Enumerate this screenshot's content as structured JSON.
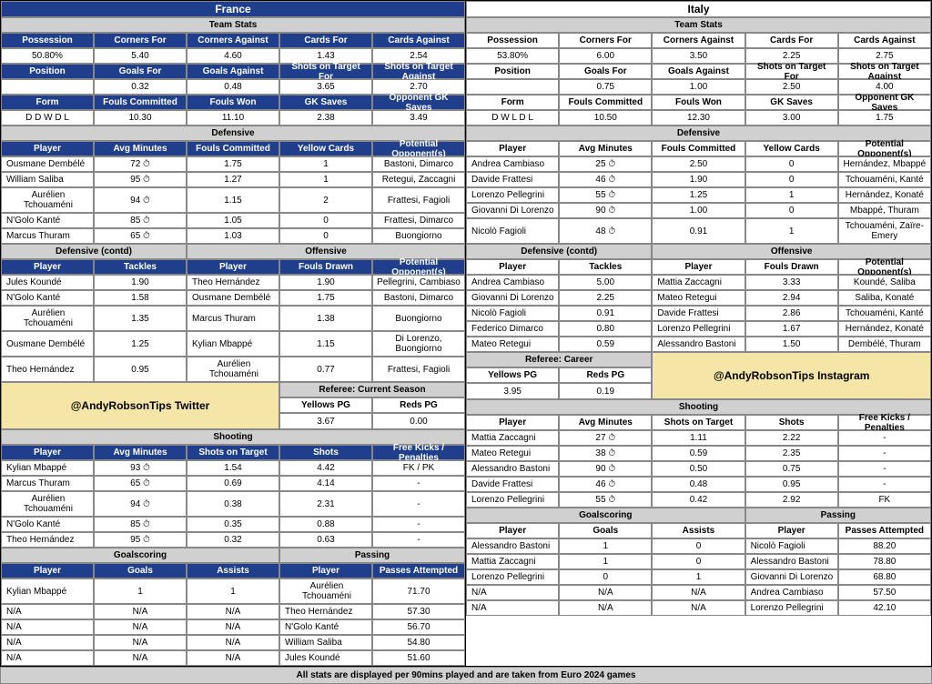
{
  "footer": "All stats are displayed per 90mins played and are taken from Euro 2024 games",
  "promo": {
    "twitter": "@AndyRobsonTips Twitter",
    "instagram": "@AndyRobsonTips Instagram"
  },
  "france": {
    "name": "France",
    "teamstats_lbl": "Team Stats",
    "stats1_h": [
      "Possession",
      "Corners For",
      "Corners Against",
      "Cards For",
      "Cards Against"
    ],
    "stats1_v": [
      "50.80%",
      "5.40",
      "4.60",
      "1.43",
      "2.54"
    ],
    "stats2_h": [
      "Position",
      "Goals For",
      "Goals Against",
      "Shots on Target For",
      "Shots on Target Against"
    ],
    "stats2_v": [
      "",
      "0.32",
      "0.48",
      "3.65",
      "2.70"
    ],
    "stats3_h": [
      "Form",
      "Fouls Committed",
      "Fouls Won",
      "GK Saves",
      "Opponent GK Saves"
    ],
    "stats3_v": [
      "D D W D L",
      "10.30",
      "11.10",
      "2.38",
      "3.49"
    ],
    "defensive_lbl": "Defensive",
    "def_h": [
      "Player",
      "Avg Minutes",
      "Fouls Committed",
      "Yellow Cards",
      "Potential Opponent(s)"
    ],
    "def_rows": [
      [
        "Ousmane Dembélé",
        "72 ⏱",
        "1.75",
        "1",
        "Bastoni, Dimarco"
      ],
      [
        "William Saliba",
        "95 ⏱",
        "1.27",
        "1",
        "Retegui, Zaccagni"
      ],
      [
        "Aurélien Tchouaméni",
        "94 ⏱",
        "1.15",
        "2",
        "Frattesi, Fagioli"
      ],
      [
        "N'Golo Kanté",
        "85 ⏱",
        "1.05",
        "0",
        "Frattesi, Dimarco"
      ],
      [
        "Marcus Thuram",
        "65 ⏱",
        "1.03",
        "0",
        "Buongiorno"
      ]
    ],
    "defc_lbl": "Defensive (contd)",
    "off_lbl": "Offensive",
    "defc_h": [
      "Player",
      "Tackles"
    ],
    "off_h": [
      "Player",
      "Fouls Drawn",
      "Potential Opponent(s)"
    ],
    "defc_rows": [
      [
        "Jules Koundé",
        "1.90"
      ],
      [
        "N'Golo Kanté",
        "1.58"
      ],
      [
        "Aurélien Tchouaméni",
        "1.35"
      ],
      [
        "Ousmane Dembélé",
        "1.25"
      ],
      [
        "Theo Hernández",
        "0.95"
      ]
    ],
    "off_rows": [
      [
        "Theo Hernández",
        "1.90",
        "Pellegrini, Cambiaso"
      ],
      [
        "Ousmane Dembélé",
        "1.75",
        "Bastoni, Dimarco"
      ],
      [
        "Marcus Thuram",
        "1.38",
        "Buongiorno"
      ],
      [
        "Kylian Mbappé",
        "1.15",
        "Di Lorenzo, Buongiorno"
      ],
      [
        "Aurélien Tchouaméni",
        "0.77",
        "Frattesi, Fagioli"
      ]
    ],
    "shoot_lbl": "Shooting",
    "shoot_h": [
      "Player",
      "Avg Minutes",
      "Shots on Target",
      "Shots",
      "Free Kicks / Penalties"
    ],
    "shoot_rows": [
      [
        "Kylian Mbappé",
        "93 ⏱",
        "1.54",
        "4.42",
        "FK / PK"
      ],
      [
        "Marcus Thuram",
        "65 ⏱",
        "0.69",
        "4.14",
        "-"
      ],
      [
        "Aurélien Tchouaméni",
        "94 ⏱",
        "0.38",
        "2.31",
        "-"
      ],
      [
        "N'Golo Kanté",
        "85 ⏱",
        "0.35",
        "0.88",
        "-"
      ],
      [
        "Theo Hernández",
        "95 ⏱",
        "0.32",
        "0.63",
        "-"
      ]
    ],
    "goal_lbl": "Goalscoring",
    "pass_lbl": "Passing",
    "goal_h": [
      "Player",
      "Goals",
      "Assists"
    ],
    "pass_h": [
      "Player",
      "Passes Attempted"
    ],
    "goal_rows": [
      [
        "Kylian Mbappé",
        "1",
        "1"
      ],
      [
        "N/A",
        "N/A",
        "N/A"
      ],
      [
        "N/A",
        "N/A",
        "N/A"
      ],
      [
        "N/A",
        "N/A",
        "N/A"
      ],
      [
        "N/A",
        "N/A",
        "N/A"
      ]
    ],
    "pass_rows": [
      [
        "Aurélien Tchouaméni",
        "71.70"
      ],
      [
        "Theo Hernández",
        "57.30"
      ],
      [
        "N'Golo Kanté",
        "56.70"
      ],
      [
        "William Saliba",
        "54.80"
      ],
      [
        "Jules Koundé",
        "51.60"
      ]
    ]
  },
  "italy": {
    "name": "Italy",
    "teamstats_lbl": "Team Stats",
    "stats1_h": [
      "Possession",
      "Corners For",
      "Corners Against",
      "Cards For",
      "Cards Against"
    ],
    "stats1_v": [
      "53.80%",
      "6.00",
      "3.50",
      "2.25",
      "2.75"
    ],
    "stats2_h": [
      "Position",
      "Goals For",
      "Goals Against",
      "Shots on Target For",
      "Shots on Target Against"
    ],
    "stats2_v": [
      "",
      "0.75",
      "1.00",
      "2.50",
      "4.00"
    ],
    "stats3_h": [
      "Form",
      "Fouls Committed",
      "Fouls Won",
      "GK Saves",
      "Opponent GK Saves"
    ],
    "stats3_v": [
      "D W L D L",
      "10.50",
      "12.30",
      "3.00",
      "1.75"
    ],
    "defensive_lbl": "Defensive",
    "def_h": [
      "Player",
      "Avg Minutes",
      "Fouls Committed",
      "Yellow Cards",
      "Potential Opponent(s)"
    ],
    "def_rows": [
      [
        "Andrea Cambiaso",
        "25 ⏱",
        "2.50",
        "0",
        "Hernández, Mbappé"
      ],
      [
        "Davide Frattesi",
        "46 ⏱",
        "1.90",
        "0",
        "Tchouaméni, Kanté"
      ],
      [
        "Lorenzo Pellegrini",
        "55 ⏱",
        "1.25",
        "1",
        "Hernández, Konaté"
      ],
      [
        "Giovanni Di Lorenzo",
        "90 ⏱",
        "1.00",
        "0",
        "Mbappé, Thuram"
      ],
      [
        "Nicolò Fagioli",
        "48 ⏱",
        "0.91",
        "1",
        "Tchouaméni, Zaïre-Emery"
      ]
    ],
    "defc_lbl": "Defensive (contd)",
    "off_lbl": "Offensive",
    "defc_h": [
      "Player",
      "Tackles"
    ],
    "off_h": [
      "Player",
      "Fouls Drawn",
      "Potential Opponent(s)"
    ],
    "defc_rows": [
      [
        "Andrea Cambiaso",
        "5.00"
      ],
      [
        "Giovanni Di Lorenzo",
        "2.25"
      ],
      [
        "Nicolò Fagioli",
        "0.91"
      ],
      [
        "Federico Dimarco",
        "0.80"
      ],
      [
        "Mateo Retegui",
        "0.59"
      ]
    ],
    "off_rows": [
      [
        "Mattia Zaccagni",
        "3.33",
        "Koundé, Saliba"
      ],
      [
        "Mateo Retegui",
        "2.94",
        "Saliba, Konaté"
      ],
      [
        "Davide Frattesi",
        "2.86",
        "Tchouaméni, Kanté"
      ],
      [
        "Lorenzo Pellegrini",
        "1.67",
        "Hernández, Konaté"
      ],
      [
        "Alessandro Bastoni",
        "1.50",
        "Dembélé, Thuram"
      ]
    ],
    "shoot_lbl": "Shooting",
    "shoot_h": [
      "Player",
      "Avg Minutes",
      "Shots on Target",
      "Shots",
      "Free Kicks / Penalties"
    ],
    "shoot_rows": [
      [
        "Mattia Zaccagni",
        "27 ⏱",
        "1.11",
        "2.22",
        "-"
      ],
      [
        "Mateo Retegui",
        "38 ⏱",
        "0.59",
        "2.35",
        "-"
      ],
      [
        "Alessandro Bastoni",
        "90 ⏱",
        "0.50",
        "0.75",
        "-"
      ],
      [
        "Davide Frattesi",
        "46 ⏱",
        "0.48",
        "0.95",
        "-"
      ],
      [
        "Lorenzo Pellegrini",
        "55 ⏱",
        "0.42",
        "2.92",
        "FK"
      ]
    ],
    "goal_lbl": "Goalscoring",
    "pass_lbl": "Passing",
    "goal_h": [
      "Player",
      "Goals",
      "Assists"
    ],
    "pass_h": [
      "Player",
      "Passes Attempted"
    ],
    "goal_rows": [
      [
        "Alessandro Bastoni",
        "1",
        "0"
      ],
      [
        "Mattia Zaccagni",
        "1",
        "0"
      ],
      [
        "Lorenzo Pellegrini",
        "0",
        "1"
      ],
      [
        "N/A",
        "N/A",
        "N/A"
      ],
      [
        "N/A",
        "N/A",
        "N/A"
      ]
    ],
    "pass_rows": [
      [
        "Nicolò Fagioli",
        "88.20"
      ],
      [
        "Alessandro Bastoni",
        "78.80"
      ],
      [
        "Giovanni Di Lorenzo",
        "68.80"
      ],
      [
        "Andrea Cambiaso",
        "57.50"
      ],
      [
        "Lorenzo Pellegrini",
        "42.10"
      ]
    ]
  },
  "referee": {
    "cur_lbl": "Referee: Current Season",
    "car_lbl": "Referee: Career",
    "h": [
      "Yellows PG",
      "Reds PG"
    ],
    "cur": [
      "3.67",
      "0.00"
    ],
    "car": [
      "3.95",
      "0.19"
    ]
  }
}
